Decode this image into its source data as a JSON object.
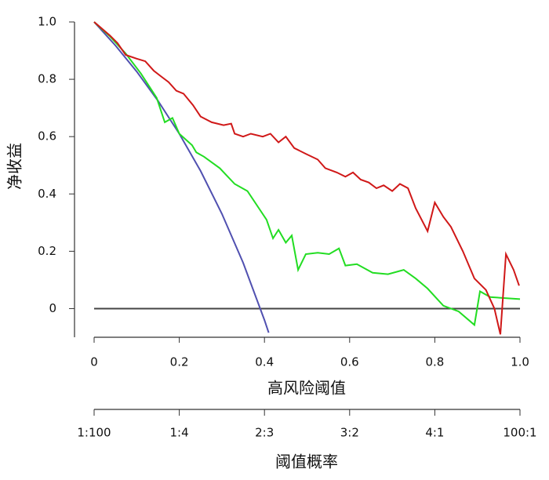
{
  "chart_data": {
    "type": "line",
    "xlabel": "高风险阈值",
    "ylabel": "净收益",
    "x2label": "阈值概率",
    "xlim": [
      0,
      1
    ],
    "ylim": [
      -0.1,
      1
    ],
    "xticks": [
      0,
      0.2,
      0.4,
      0.6,
      0.8,
      {
        "value": 1,
        "label": "1.0"
      }
    ],
    "yticks": [
      0,
      0.2,
      0.4,
      0.6,
      0.8,
      {
        "value": 1,
        "label": "1.0"
      }
    ],
    "x2ticks": [
      {
        "value": 0,
        "label": "1:100"
      },
      {
        "value": 0.2,
        "label": "1:4"
      },
      {
        "value": 0.4,
        "label": "2:3"
      },
      {
        "value": 0.6,
        "label": "3:2"
      },
      {
        "value": 0.8,
        "label": "4:1"
      },
      {
        "value": 1,
        "label": "100:1"
      }
    ],
    "grid": false,
    "series": [
      {
        "color": "#d01818",
        "x": [
          0,
          0.037,
          0.055,
          0.074,
          0.1,
          0.12,
          0.14,
          0.157,
          0.175,
          0.193,
          0.21,
          0.232,
          0.25,
          0.276,
          0.304,
          0.322,
          0.33,
          0.35,
          0.368,
          0.396,
          0.414,
          0.433,
          0.45,
          0.47,
          0.497,
          0.525,
          0.543,
          0.57,
          0.59,
          0.608,
          0.626,
          0.645,
          0.663,
          0.68,
          0.7,
          0.718,
          0.737,
          0.755,
          0.783,
          0.8,
          0.82,
          0.838,
          0.866,
          0.893,
          0.92,
          0.94,
          0.954,
          0.967,
          0.985,
          0.998
        ],
        "values": [
          1,
          0.953,
          0.926,
          0.885,
          0.872,
          0.863,
          0.83,
          0.81,
          0.79,
          0.76,
          0.75,
          0.71,
          0.67,
          0.65,
          0.64,
          0.645,
          0.61,
          0.6,
          0.61,
          0.6,
          0.61,
          0.58,
          0.6,
          0.56,
          0.54,
          0.52,
          0.49,
          0.475,
          0.46,
          0.475,
          0.45,
          0.44,
          0.42,
          0.43,
          0.41,
          0.435,
          0.42,
          0.35,
          0.27,
          0.37,
          0.32,
          0.285,
          0.2,
          0.105,
          0.065,
          0,
          -0.09,
          0.19,
          0.135,
          0.08
        ]
      },
      {
        "color": "#22dd22",
        "x": [
          0,
          0.037,
          0.074,
          0.11,
          0.147,
          0.166,
          0.184,
          0.2,
          0.23,
          0.24,
          0.258,
          0.295,
          0.33,
          0.36,
          0.387,
          0.405,
          0.42,
          0.433,
          0.45,
          0.464,
          0.479,
          0.497,
          0.525,
          0.552,
          0.575,
          0.59,
          0.617,
          0.654,
          0.69,
          0.727,
          0.755,
          0.783,
          0.82,
          0.856,
          0.893,
          0.906,
          0.93,
          1
        ],
        "values": [
          1,
          0.95,
          0.89,
          0.82,
          0.735,
          0.65,
          0.665,
          0.61,
          0.57,
          0.545,
          0.53,
          0.49,
          0.435,
          0.41,
          0.35,
          0.31,
          0.245,
          0.275,
          0.23,
          0.255,
          0.135,
          0.19,
          0.195,
          0.19,
          0.21,
          0.15,
          0.155,
          0.125,
          0.12,
          0.135,
          0.105,
          0.07,
          0.01,
          -0.01,
          -0.057,
          0.06,
          0.04,
          0.033
        ]
      },
      {
        "color": "#5050b0",
        "x": [
          0,
          0.05,
          0.1,
          0.15,
          0.2,
          0.25,
          0.3,
          0.35,
          0.4,
          0.41
        ],
        "values": [
          1,
          0.918,
          0.827,
          0.725,
          0.61,
          0.48,
          0.331,
          0.16,
          -0.04,
          -0.084
        ]
      },
      {
        "color": "#444444",
        "x": [
          0,
          1
        ],
        "values": [
          0,
          0
        ]
      }
    ]
  }
}
